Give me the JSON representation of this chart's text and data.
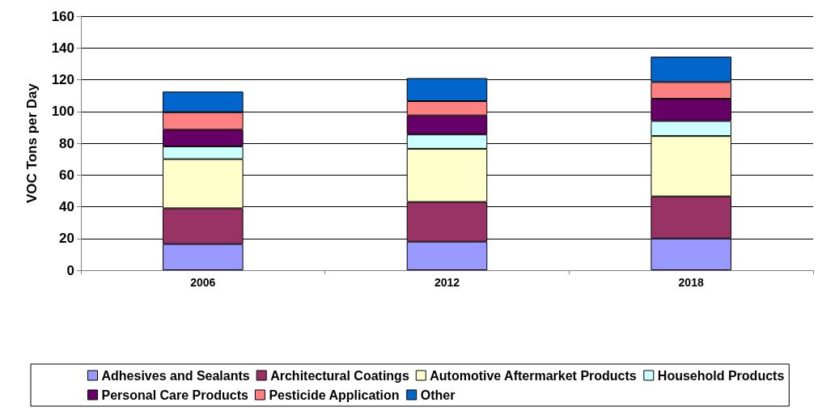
{
  "chart_data": {
    "type": "bar",
    "stacked": true,
    "categories": [
      "2006",
      "2012",
      "2018"
    ],
    "ylabel": "VOC Tons per Day",
    "ylim": [
      0,
      160
    ],
    "yticks": [
      0,
      20,
      40,
      60,
      80,
      100,
      120,
      140,
      160
    ],
    "grid": "y",
    "legend": "bottom",
    "series": [
      {
        "name": "Adhesives and Sealants",
        "color": "#9999ff",
        "values": [
          16.5,
          18,
          20
        ]
      },
      {
        "name": "Architectural Coatings",
        "color": "#993366",
        "values": [
          22.5,
          25,
          26.5
        ]
      },
      {
        "name": "Automotive Aftermarket Products",
        "color": "#ffffcc",
        "values": [
          31,
          33.5,
          38
        ]
      },
      {
        "name": "Household Products",
        "color": "#ccffff",
        "values": [
          8,
          9,
          9.5
        ]
      },
      {
        "name": "Personal Care Products",
        "color": "#660066",
        "values": [
          10.5,
          12,
          14
        ]
      },
      {
        "name": "Pesticide Application",
        "color": "#ff8080",
        "values": [
          11,
          9,
          10.5
        ]
      },
      {
        "name": "Other",
        "color": "#0066cc",
        "values": [
          13,
          14.5,
          16
        ]
      }
    ]
  }
}
